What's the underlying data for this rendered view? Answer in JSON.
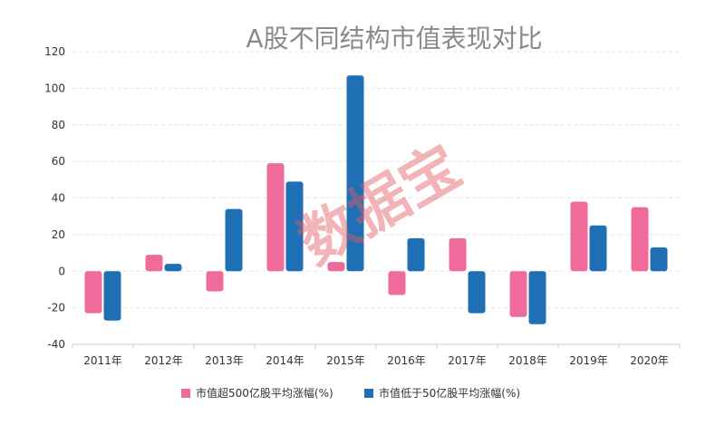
{
  "watermark_text": "数据宝",
  "colors": {
    "series1": "#ef6b9c",
    "series2": "#1f6fb5",
    "grid": "#e6e6e6",
    "axis": "#cccccc"
  },
  "chart_data": {
    "type": "bar",
    "title": "A股不同结构市值表现对比",
    "xlabel": "",
    "ylabel": "",
    "categories": [
      "2011年",
      "2012年",
      "2013年",
      "2014年",
      "2015年",
      "2016年",
      "2017年",
      "2018年",
      "2019年",
      "2020年"
    ],
    "series": [
      {
        "name": "市值超500亿股平均涨幅(%)",
        "values": [
          -23,
          9,
          -11,
          59,
          5,
          -13,
          18,
          -25,
          38,
          35
        ]
      },
      {
        "name": "市值低于50亿股平均涨幅(%)",
        "values": [
          -27,
          4,
          34,
          49,
          107,
          18,
          -23,
          -29,
          25,
          13
        ]
      }
    ],
    "ylim": [
      -40,
      120
    ],
    "yticks": [
      -40,
      -20,
      0,
      20,
      40,
      60,
      80,
      100,
      120
    ],
    "grid": true,
    "legend": "bottom"
  }
}
